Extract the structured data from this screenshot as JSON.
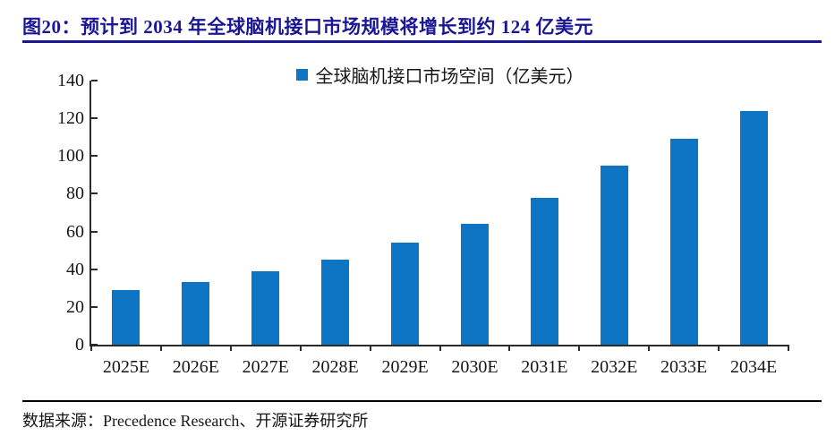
{
  "header": {
    "title": "图20：预计到 2034 年全球脑机接口市场规模将增长到约 124 亿美元"
  },
  "chart_data": {
    "type": "bar",
    "title": "预计到 2034 年全球脑机接口市场规模将增长到约 124 亿美元",
    "legend": "全球脑机接口市场空间（亿美元）",
    "legend_position": "top-center",
    "categories": [
      "2025E",
      "2026E",
      "2027E",
      "2028E",
      "2029E",
      "2030E",
      "2031E",
      "2032E",
      "2033E",
      "2034E"
    ],
    "values": [
      29,
      33,
      39,
      45,
      54,
      64,
      78,
      95,
      109,
      124
    ],
    "xlabel": "",
    "ylabel": "",
    "ylim": [
      0,
      140
    ],
    "yticks": [
      0,
      20,
      40,
      60,
      80,
      100,
      120,
      140
    ],
    "grid": false
  },
  "footer": {
    "source": "数据来源：Precedence Research、开源证券研究所"
  },
  "colors": {
    "title_navy": "#1b1694",
    "bar_blue": "#0d75c3",
    "axis_gray": "#2b2b2b"
  }
}
